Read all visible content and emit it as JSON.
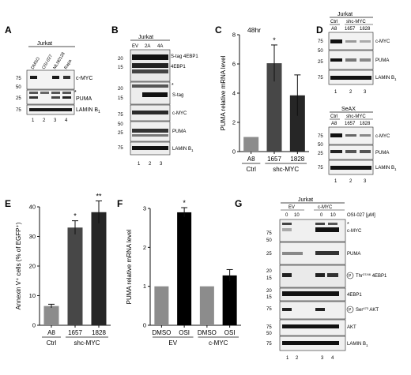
{
  "panels": {
    "A": {
      "letter": "A",
      "cell_line": "Jurkat",
      "lanes": [
        "DMSO",
        "OSI-027",
        "MLN0128",
        "Rapa"
      ],
      "lane_numbers": [
        "1",
        "2",
        "3",
        "4"
      ],
      "mw": [
        "75",
        "50",
        "25",
        "75"
      ],
      "bands": [
        "c-MYC",
        "PUMA",
        "LAMIN B"
      ],
      "band_sub": "1",
      "nonspecific": "*"
    },
    "B": {
      "letter": "B",
      "cell_line": "Jurkat",
      "lanes": [
        "EV",
        "2A",
        "4A"
      ],
      "lane_numbers": [
        "1",
        "2",
        "3"
      ],
      "mw": [
        "20",
        "15",
        "20",
        "15",
        "75",
        "50",
        "25",
        "75"
      ],
      "bands": [
        "S-tag 4EBP1",
        "4EBP1",
        "S-tag",
        "c-MYC",
        "PUMA",
        "LAMIN B"
      ],
      "band_sub": "1",
      "nonspecific": "*"
    },
    "C": {
      "letter": "C",
      "title": "48hr",
      "significance": "*"
    },
    "D": {
      "letter": "D",
      "blot1": {
        "cell_line": "Jurkat",
        "ctrl_label": "Ctrl",
        "shc_label": "shc-MYC",
        "lanes": [
          "A8",
          "1657",
          "1828"
        ],
        "lane_numbers": [
          "1",
          "2",
          "3"
        ],
        "mw": [
          "75",
          "50",
          "25",
          "75"
        ],
        "bands": [
          "c-MYC",
          "PUMA",
          "LAMIN B"
        ]
      },
      "blot2": {
        "cell_line": "SeAX",
        "ctrl_label": "Ctrl",
        "shc_label": "shc-MYC",
        "lanes": [
          "A8",
          "1657",
          "1828"
        ],
        "lane_numbers": [
          "1",
          "2",
          "3"
        ],
        "mw": [
          "75",
          "50",
          "25",
          "75"
        ],
        "bands": [
          "c-MYC",
          "PUMA",
          "LAMIN B"
        ]
      },
      "band_sub": "1"
    },
    "E": {
      "letter": "E",
      "sig1": "*",
      "sig2": "**"
    },
    "F": {
      "letter": "F",
      "sig": "*"
    },
    "G": {
      "letter": "G",
      "cell_line": "Jurkat",
      "groups": [
        "EV",
        "c-MYC"
      ],
      "osi_label": "OSI-027 [μM]",
      "doses": [
        "0",
        "10",
        "0",
        "10"
      ],
      "lane_numbers": [
        "1",
        "2",
        "3",
        "4"
      ],
      "mw": [
        "75",
        "50",
        "25",
        "20",
        "15",
        "20",
        "15",
        "75",
        "75",
        "50",
        "75"
      ],
      "bands": [
        "c-MYC",
        "PUMA",
        "4EBP1",
        "4EBP1",
        "AKT",
        "AKT",
        "LAMIN B"
      ],
      "phospho_marker": "P",
      "thr_label": "Thr",
      "thr_site": "37/46",
      "ser_label": "Ser",
      "ser_site": "473",
      "band_sub": "1",
      "nonspecific": "*"
    }
  },
  "chart_data": [
    {
      "panel": "C",
      "type": "bar",
      "title": "48hr",
      "categories": [
        "A8",
        "1657",
        "1828"
      ],
      "groups": [
        {
          "label": "Ctrl",
          "span": [
            0,
            0
          ]
        },
        {
          "label": "shc-MYC",
          "span": [
            1,
            2
          ]
        }
      ],
      "values": [
        1.0,
        6.05,
        3.85
      ],
      "errors": [
        0,
        1.25,
        1.4
      ],
      "colors": [
        "#8c8c8c",
        "#474747",
        "#262626"
      ],
      "ylabel": "PUMA relative mRNA level",
      "ylim": [
        0,
        8
      ],
      "yticks": [
        0,
        2,
        4,
        6,
        8
      ]
    },
    {
      "panel": "E",
      "type": "bar",
      "categories": [
        "A8",
        "1657",
        "1828"
      ],
      "groups": [
        {
          "label": "Ctrl",
          "span": [
            0,
            0
          ]
        },
        {
          "label": "shc-MYC",
          "span": [
            1,
            2
          ]
        }
      ],
      "values": [
        6.5,
        33,
        38.2
      ],
      "errors": [
        0.6,
        2.3,
        3.8
      ],
      "colors": [
        "#8c8c8c",
        "#474747",
        "#262626"
      ],
      "ylabel": "Annexin V⁺ cells (% of EGFP⁺)",
      "ylim": [
        0,
        40
      ],
      "yticks": [
        0,
        10,
        20,
        30,
        40
      ]
    },
    {
      "panel": "F",
      "type": "bar",
      "categories": [
        "DMSO",
        "OSI",
        "DMSO",
        "OSI"
      ],
      "groups": [
        {
          "label": "EV",
          "span": [
            0,
            1
          ]
        },
        {
          "label": "c-MYC",
          "span": [
            2,
            3
          ]
        }
      ],
      "values": [
        1.0,
        2.9,
        1.0,
        1.28
      ],
      "errors": [
        0,
        0.12,
        0,
        0.15
      ],
      "colors": [
        "#8c8c8c",
        "#000000",
        "#8c8c8c",
        "#000000"
      ],
      "ylabel": "PUMA relative mRNA level",
      "ylim": [
        0,
        3
      ],
      "yticks": [
        0,
        1,
        2,
        3
      ]
    }
  ]
}
